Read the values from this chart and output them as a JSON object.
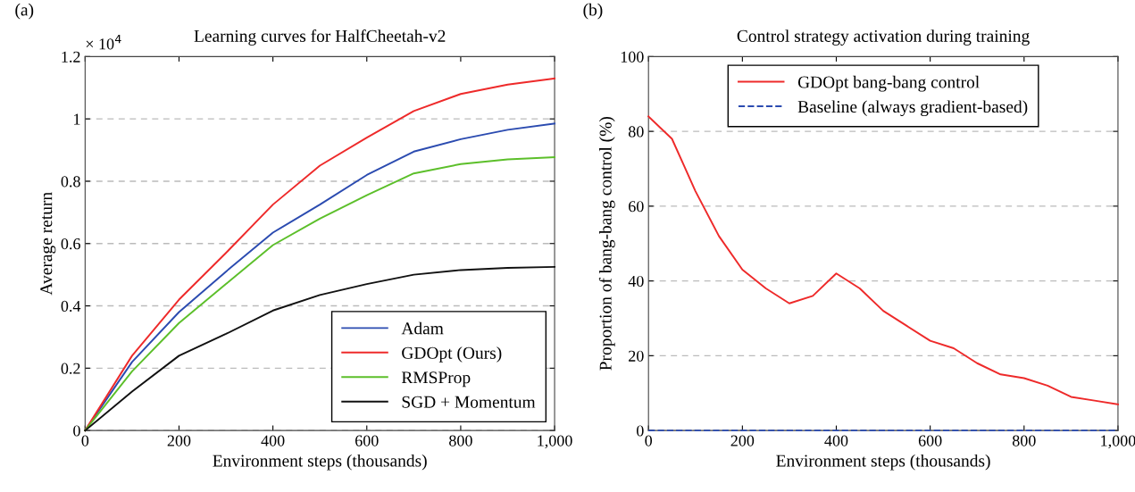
{
  "chart_data": [
    {
      "type": "line",
      "title": "Learning curves for HalfCheetah-v2",
      "xlabel": "Environment steps (thousands)",
      "ylabel": "Average return",
      "annotations": [
        "(a)",
        "× 10$^{4}$"
      ],
      "x": [
        0,
        100,
        200,
        300,
        400,
        500,
        600,
        700,
        800,
        900,
        1000
      ],
      "series": [
        {
          "name": "Adam",
          "color": "#2b4bb0",
          "values": [
            0,
            0.22,
            0.38,
            0.51,
            0.635,
            0.725,
            0.82,
            0.895,
            0.935,
            0.965,
            0.985
          ]
        },
        {
          "name": "GDOpt (Ours)",
          "color": "#ee2a2a",
          "values": [
            0,
            0.24,
            0.42,
            0.57,
            0.725,
            0.85,
            0.94,
            1.025,
            1.08,
            1.11,
            1.13
          ]
        },
        {
          "name": "RMSProp",
          "color": "#5cbf2a",
          "values": [
            0,
            0.19,
            0.345,
            0.47,
            0.595,
            0.68,
            0.755,
            0.825,
            0.855,
            0.87,
            0.877
          ]
        },
        {
          "name": "SGD + Momentum",
          "color": "#111111",
          "values": [
            0,
            0.125,
            0.24,
            0.31,
            0.385,
            0.435,
            0.47,
            0.5,
            0.515,
            0.522,
            0.525
          ]
        }
      ],
      "xlim": [
        0,
        1000
      ],
      "xticks": [
        0,
        200,
        400,
        600,
        800,
        {
          "value": 1000,
          "label": "1,000"
        }
      ],
      "ylim": [
        0,
        1.2
      ],
      "yticks": [
        0,
        0.2,
        0.4,
        0.6,
        0.8,
        1,
        1.2
      ],
      "grid": "y",
      "legend": "bottom right",
      "line_style": "solid",
      "marker": "none"
    },
    {
      "type": "line",
      "title": "Control strategy activation during training",
      "xlabel": "Environment steps (thousands)",
      "ylabel": "Proportion of bang-bang control (%)",
      "annotations": [
        "(b)"
      ],
      "x": [
        0,
        50,
        100,
        150,
        200,
        250,
        300,
        350,
        400,
        450,
        500,
        550,
        600,
        650,
        700,
        750,
        800,
        850,
        900,
        950,
        1000
      ],
      "series": [
        {
          "name": "GDOpt bang-bang control",
          "color": "#ee2a2a",
          "values": [
            84,
            78,
            64,
            52,
            43,
            38,
            34,
            36,
            42,
            38,
            32,
            28,
            24,
            22,
            18,
            15,
            14,
            12,
            9,
            8,
            7
          ]
        },
        {
          "name": "Baseline (always gradient-based)",
          "color": "#2b4bb0",
          "line_style": "dashed",
          "values": [
            0,
            0,
            0,
            0,
            0,
            0,
            0,
            0,
            0,
            0,
            0,
            0,
            0,
            0,
            0,
            0,
            0,
            0,
            0,
            0,
            0
          ]
        }
      ],
      "xlim": [
        0,
        1000
      ],
      "xticks": [
        0,
        200,
        400,
        600,
        800,
        {
          "value": 1000,
          "label": "1,000"
        }
      ],
      "ylim": [
        0,
        100
      ],
      "yticks": [
        0,
        20,
        40,
        60,
        80,
        100
      ],
      "grid": "y",
      "legend": "top",
      "line_style": "solid",
      "marker": "none"
    }
  ]
}
